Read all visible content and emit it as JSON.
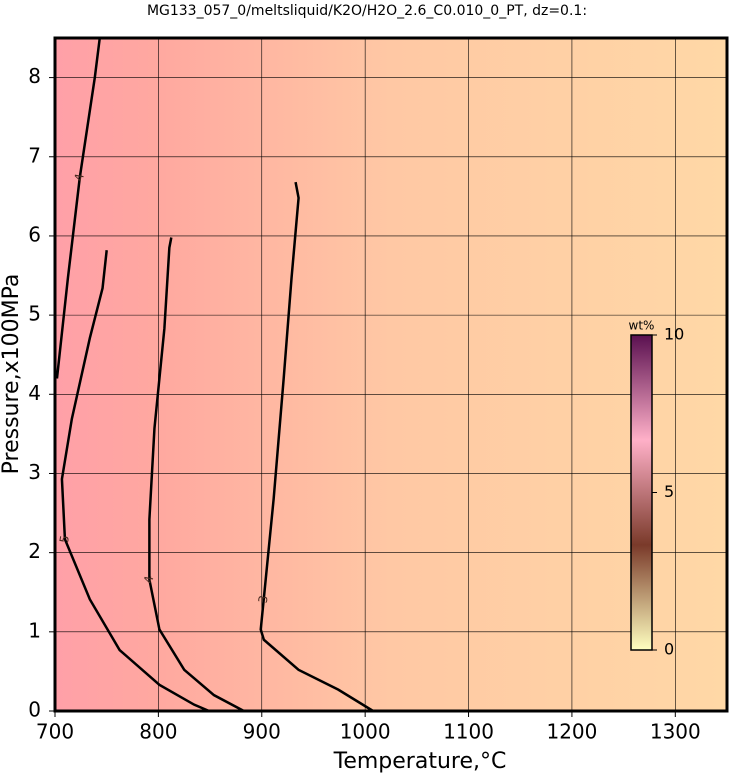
{
  "chart_data": {
    "type": "contour",
    "title": "MG133_057_0/meltsliquid/K2O/H2O_2.6_C0.010_0_PT, dz=0.1:",
    "x_label": "Temperature,°C",
    "y_label": "Pressure,x100MPa",
    "xlim": [
      700,
      1350
    ],
    "xticks": [
      700,
      800,
      900,
      1000,
      1100,
      1200,
      1300
    ],
    "ylim": [
      0,
      8.5
    ],
    "yticks": [
      0,
      1,
      2,
      3,
      4,
      5,
      6,
      7,
      8
    ],
    "grid": true,
    "contours": [
      {
        "level": 3,
        "color": "#000000",
        "x": [
          932.7,
          935.6,
          928.8,
          921.2,
          911.5,
          901.9,
          899,
          902,
          935.6,
          974,
          1007.7
        ],
        "y": [
          6.68,
          6.48,
          5.47,
          4.2,
          2.68,
          1.41,
          1.03,
          0.9,
          0.52,
          0.27,
          0
        ]
      },
      {
        "level": 4,
        "color": "#000000",
        "x": [
          812.5,
          810.6,
          805.8,
          796.2,
          791.3,
          791.3,
          801,
          825,
          853.8,
          882.7
        ],
        "y": [
          5.98,
          5.85,
          4.83,
          3.57,
          2.42,
          1.66,
          1.03,
          0.52,
          0.2,
          0
        ]
      },
      {
        "level": 5,
        "color": "#000000",
        "x": [
          750,
          746,
          733.7,
          716.3,
          706.7,
          709.6,
          733.7,
          762.5,
          801,
          834.6,
          849
        ],
        "y": [
          5.82,
          5.34,
          4.71,
          3.69,
          2.93,
          2.17,
          1.41,
          0.77,
          0.33,
          0.08,
          0
        ]
      },
      {
        "level": 4,
        "color": "#000000",
        "x": [
          701.9,
          712.5,
          724,
          738.5,
          743.3
        ],
        "y": [
          4.2,
          5.47,
          6.74,
          8.0,
          8.5
        ]
      }
    ],
    "colorbar": {
      "label": "wt%",
      "lim": [
        0,
        10
      ],
      "ticks": [
        0,
        5,
        10
      ],
      "colors": [
        "#ffffc0",
        "#7a3a2a",
        "#ffb0c8",
        "#5a1050"
      ]
    }
  }
}
